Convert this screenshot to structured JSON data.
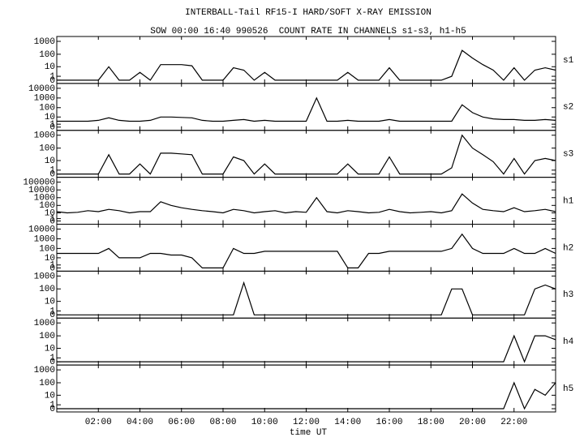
{
  "chart_data": {
    "type": "line",
    "title": "INTERBALL-Tail RF15-I HARD/SOFT X-RAY EMISSION",
    "subtitle": "SOW 00:00 16:40 990526  COUNT RATE IN CHANNELS s1-s3, h1-h5",
    "x_label": "time UT",
    "yscale": "log1p",
    "color": "#000000",
    "x": [
      0,
      0.5,
      1,
      1.5,
      2,
      2.5,
      3,
      3.5,
      4,
      4.5,
      5,
      5.5,
      6,
      6.5,
      7,
      7.5,
      8,
      8.5,
      9,
      9.5,
      10,
      10.5,
      11,
      11.5,
      12,
      12.5,
      13,
      13.5,
      14,
      14.5,
      15,
      15.5,
      16,
      16.5,
      17,
      17.5,
      18,
      18.5,
      19,
      19.5,
      20,
      20.5,
      21,
      21.5,
      22,
      22.5,
      23,
      23.5,
      24
    ],
    "xlim": [
      0,
      24
    ],
    "xticks": [
      {
        "value": 2,
        "label": "02:00"
      },
      {
        "value": 4,
        "label": "04:00"
      },
      {
        "value": 6,
        "label": "06:00"
      },
      {
        "value": 8,
        "label": "08:00"
      },
      {
        "value": 10,
        "label": "10:00"
      },
      {
        "value": 12,
        "label": "12:00"
      },
      {
        "value": 14,
        "label": "14:00"
      },
      {
        "value": 16,
        "label": "16:00"
      },
      {
        "value": 18,
        "label": "18:00"
      },
      {
        "value": 20,
        "label": "20:00"
      },
      {
        "value": 22,
        "label": "22:00"
      }
    ],
    "series": [
      {
        "name": "s1",
        "ylim": [
          0,
          1000
        ],
        "yticks": [
          0,
          1,
          10,
          100,
          1000
        ],
        "values": [
          0,
          0,
          0,
          0,
          0,
          10,
          0,
          0,
          3,
          0,
          15,
          15,
          15,
          12,
          0,
          0,
          0,
          8,
          5,
          0,
          3,
          0,
          0,
          0,
          0,
          0,
          0,
          0,
          3,
          0,
          0,
          0,
          8,
          0,
          0,
          0,
          0,
          0,
          1,
          200,
          50,
          15,
          5,
          0,
          8,
          0,
          5,
          8,
          5
        ]
      },
      {
        "name": "s2",
        "ylim": [
          0,
          10000
        ],
        "yticks": [
          0,
          1,
          10,
          100,
          1000,
          10000
        ],
        "values": [
          3,
          3,
          3,
          3,
          4,
          8,
          4,
          3,
          3,
          4,
          10,
          10,
          9,
          8,
          4,
          3,
          3,
          4,
          5,
          3,
          4,
          3,
          3,
          3,
          3,
          1000,
          3,
          3,
          4,
          3,
          3,
          3,
          5,
          3,
          3,
          3,
          3,
          3,
          3,
          200,
          30,
          10,
          6,
          5,
          5,
          4,
          4,
          5,
          4
        ]
      },
      {
        "name": "s3",
        "ylim": [
          0,
          1000
        ],
        "yticks": [
          0,
          1,
          10,
          100,
          1000
        ],
        "values": [
          0,
          0,
          0,
          0,
          0,
          30,
          0,
          0,
          5,
          0,
          40,
          40,
          35,
          30,
          0,
          0,
          0,
          20,
          10,
          0,
          5,
          0,
          0,
          0,
          0,
          0,
          0,
          0,
          5,
          0,
          0,
          0,
          20,
          0,
          0,
          0,
          0,
          0,
          2,
          1000,
          100,
          30,
          8,
          0,
          15,
          0,
          10,
          15,
          10
        ]
      },
      {
        "name": "h1",
        "ylim": [
          0,
          100000
        ],
        "yticks": [
          0,
          1,
          10,
          100,
          1000,
          10000,
          100000
        ],
        "values": [
          15,
          10,
          12,
          20,
          15,
          30,
          20,
          10,
          15,
          15,
          300,
          100,
          50,
          30,
          20,
          15,
          10,
          30,
          20,
          10,
          15,
          20,
          10,
          15,
          12,
          1000,
          15,
          10,
          20,
          15,
          10,
          12,
          30,
          15,
          10,
          12,
          15,
          10,
          20,
          3000,
          200,
          30,
          20,
          15,
          50,
          15,
          20,
          30,
          15
        ]
      },
      {
        "name": "h2",
        "ylim": [
          0,
          10000
        ],
        "yticks": [
          0,
          1,
          10,
          100,
          1000,
          10000
        ],
        "values": [
          30,
          30,
          30,
          30,
          30,
          100,
          10,
          10,
          10,
          30,
          30,
          20,
          20,
          10,
          0,
          0,
          0,
          100,
          30,
          30,
          50,
          50,
          50,
          50,
          50,
          50,
          50,
          50,
          0,
          0,
          30,
          30,
          50,
          50,
          50,
          50,
          50,
          50,
          100,
          3000,
          100,
          30,
          30,
          30,
          100,
          30,
          30,
          100,
          30
        ]
      },
      {
        "name": "h3",
        "ylim": [
          0,
          1000
        ],
        "yticks": [
          0,
          1,
          10,
          100,
          1000
        ],
        "values": [
          0,
          0,
          0,
          0,
          0,
          0,
          0,
          0,
          0,
          0,
          0,
          0,
          0,
          0,
          0,
          0,
          0,
          0,
          300,
          0,
          0,
          0,
          0,
          0,
          0,
          0,
          0,
          0,
          0,
          0,
          0,
          0,
          0,
          0,
          0,
          0,
          0,
          0,
          100,
          100,
          0,
          0,
          0,
          0,
          0,
          0,
          100,
          200,
          100
        ]
      },
      {
        "name": "h4",
        "ylim": [
          0,
          1000
        ],
        "yticks": [
          0,
          1,
          10,
          100,
          1000
        ],
        "values": [
          0,
          0,
          0,
          0,
          0,
          0,
          0,
          0,
          0,
          0,
          0,
          0,
          0,
          0,
          0,
          0,
          0,
          0,
          0,
          0,
          0,
          0,
          0,
          0,
          0,
          0,
          0,
          0,
          0,
          0,
          0,
          0,
          0,
          0,
          0,
          0,
          0,
          0,
          0,
          0,
          0,
          0,
          0,
          0,
          100,
          0,
          100,
          100,
          50
        ]
      },
      {
        "name": "h5",
        "ylim": [
          0,
          1000
        ],
        "yticks": [
          0,
          1,
          10,
          100,
          1000
        ],
        "values": [
          0,
          0,
          0,
          0,
          0,
          0,
          0,
          0,
          0,
          0,
          0,
          0,
          0,
          0,
          0,
          0,
          0,
          0,
          0,
          0,
          0,
          0,
          0,
          0,
          0,
          0,
          0,
          0,
          0,
          0,
          0,
          0,
          0,
          0,
          0,
          0,
          0,
          0,
          0,
          0,
          0,
          0,
          0,
          0,
          100,
          0,
          30,
          10,
          100
        ]
      }
    ]
  }
}
